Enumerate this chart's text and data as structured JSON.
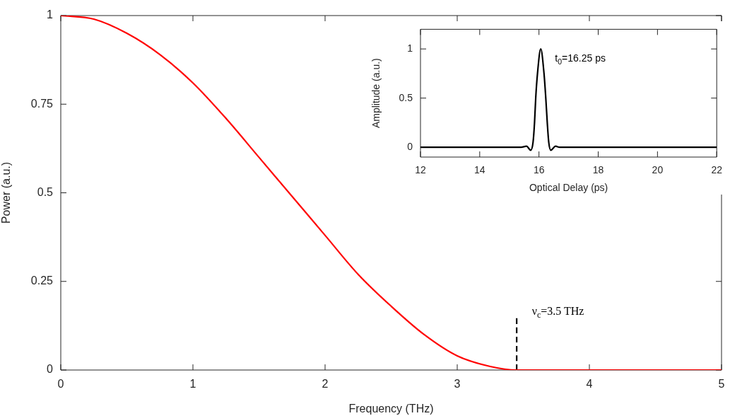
{
  "chart_data": [
    {
      "type": "line",
      "xlabel": "Frequency (THz)",
      "ylabel": "Power (a.u.)",
      "xlim": [
        0,
        5
      ],
      "ylim": [
        0,
        1
      ],
      "xticks": [
        0,
        1,
        2,
        3,
        4,
        5
      ],
      "yticks": [
        0,
        0.25,
        0.5,
        0.75,
        1
      ],
      "marker": "none",
      "line_style": "solid",
      "series": [
        {
          "color": "#ff0000",
          "x": [
            0,
            0.25,
            0.5,
            0.75,
            1,
            1.25,
            1.5,
            1.75,
            2,
            2.25,
            2.5,
            2.75,
            3,
            3.25,
            3.45,
            4,
            5
          ],
          "values": [
            1,
            0.99,
            0.95,
            0.89,
            0.81,
            0.71,
            0.6,
            0.49,
            0.38,
            0.27,
            0.18,
            0.1,
            0.04,
            0.01,
            0,
            0,
            0
          ]
        },
        {
          "color": "#000000",
          "line_style": "dashed",
          "x": [
            3.45,
            3.45
          ],
          "values": [
            0,
            0.15
          ]
        }
      ],
      "annotations": [
        "ν$_{c}$=3.5 THz"
      ]
    },
    {
      "type": "line",
      "xlabel": "Optical Delay (ps)",
      "ylabel": "Amplitude (a.u.)",
      "xlim": [
        12,
        22
      ],
      "ylim": [
        -0.1,
        1.2
      ],
      "xticks": [
        12,
        14,
        16,
        18,
        20,
        22
      ],
      "yticks": [
        0,
        0.5,
        1
      ],
      "marker": "none",
      "line_style": "solid",
      "series": [
        {
          "color": "#000000",
          "x": [
            12,
            15,
            15.4,
            15.58,
            15.72,
            15.8,
            15.85,
            15.89,
            15.95,
            16.06,
            16.17,
            16.23,
            16.28,
            16.33,
            16.4,
            16.56,
            16.7,
            17,
            22
          ],
          "values": [
            0,
            0,
            0,
            0.01,
            -0.03,
            0.05,
            0.25,
            0.5,
            0.75,
            1,
            0.75,
            0.5,
            0.25,
            0.05,
            -0.03,
            0.01,
            0,
            0,
            0
          ]
        }
      ],
      "annotations": [
        "t$_{0}$=16.25 ps"
      ]
    }
  ]
}
